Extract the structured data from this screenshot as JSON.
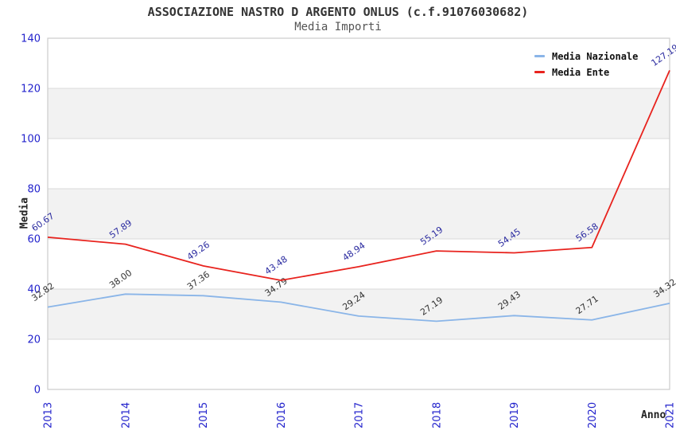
{
  "header": {
    "title": "ASSOCIAZIONE NASTRO D ARGENTO ONLUS (c.f.91076030682)",
    "subtitle": "Media Importi"
  },
  "chart_data": {
    "type": "line",
    "x": [
      "2013",
      "2014",
      "2015",
      "2016",
      "2017",
      "2018",
      "2019",
      "2020",
      "2021"
    ],
    "series": [
      {
        "name": "Media Nazionale",
        "color": "#8ab5e8",
        "label_color": "#333333",
        "values": [
          32.82,
          38.0,
          37.36,
          34.79,
          29.24,
          27.19,
          29.43,
          27.71,
          34.32
        ]
      },
      {
        "name": "Media Ente",
        "color": "#e8231e",
        "label_color": "#2b2ba0",
        "values": [
          60.67,
          57.89,
          49.26,
          43.48,
          48.94,
          55.19,
          54.45,
          56.58,
          127.19
        ]
      }
    ],
    "title": "ASSOCIAZIONE NASTRO D ARGENTO ONLUS (c.f.91076030682)",
    "subtitle": "Media Importi",
    "xlabel": "Anno",
    "ylabel": "Media",
    "ylim": [
      0,
      140
    ],
    "yticks": [
      0,
      20,
      40,
      60,
      80,
      100,
      120,
      140
    ],
    "legend_position": "top-right",
    "grid": "horizontal-bands",
    "band_color": "#f2f2f2",
    "gridline_color": "#d9d9d9",
    "border_color": "#cccccc",
    "tick_label_color": "#2222cc",
    "data_label_rotation_deg": -35
  }
}
